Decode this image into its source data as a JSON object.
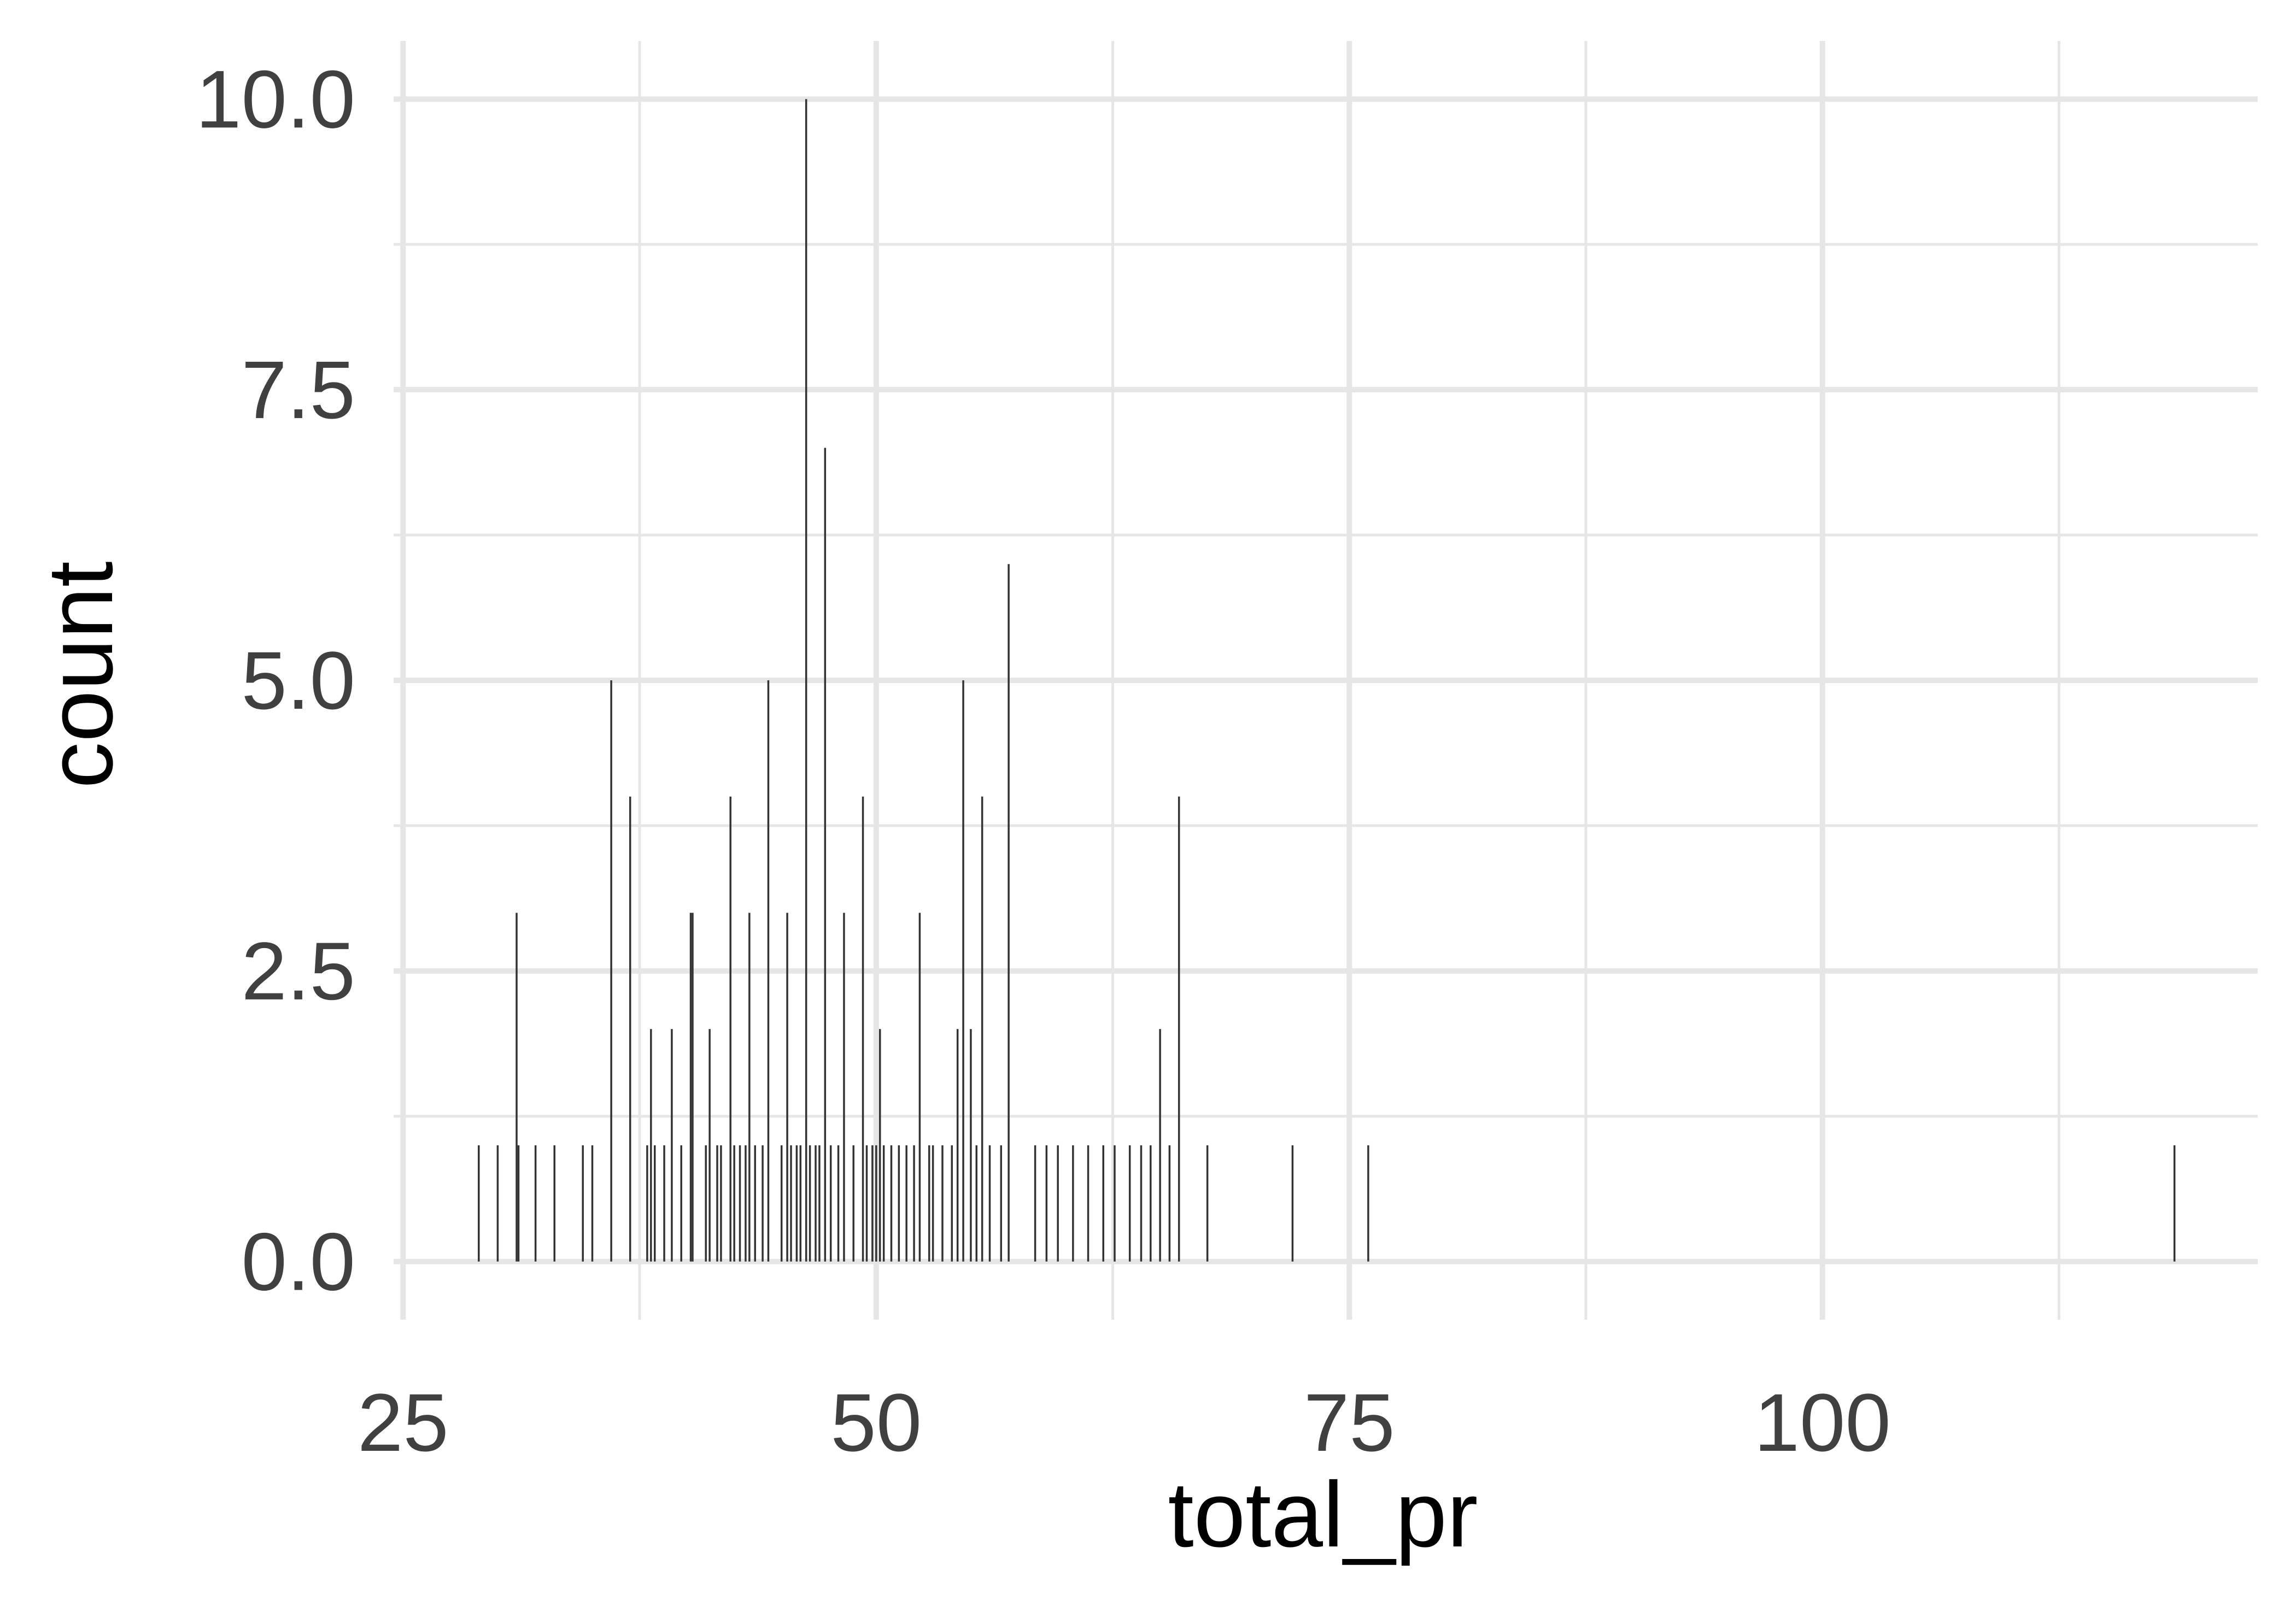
{
  "chart_data": {
    "type": "bar",
    "title": "",
    "xlabel": "total_pr",
    "ylabel": "count",
    "xlim": [
      24.5,
      123
    ],
    "ylim": [
      -0.5,
      10.5
    ],
    "x_ticks": [
      25,
      50,
      75,
      100
    ],
    "x_tick_labels": [
      "25",
      "50",
      "75",
      "100"
    ],
    "y_ticks": [
      0,
      2.5,
      5,
      7.5,
      10
    ],
    "y_tick_labels": [
      "0.0",
      "2.5",
      "5.0",
      "7.5",
      "10.0"
    ],
    "grid": true,
    "legend": "none",
    "colors": {
      "bar": "#333333",
      "grid": "#e6e6e6",
      "tick_text": "#404040",
      "title_text": "#000000",
      "background": "#ffffff"
    },
    "bars": [
      {
        "x": 29,
        "count": 1
      },
      {
        "x": 30,
        "count": 1
      },
      {
        "x": 31,
        "count": 3
      },
      {
        "x": 31.1,
        "count": 1
      },
      {
        "x": 32,
        "count": 1
      },
      {
        "x": 33,
        "count": 1
      },
      {
        "x": 34.5,
        "count": 1
      },
      {
        "x": 35,
        "count": 1
      },
      {
        "x": 36,
        "count": 5
      },
      {
        "x": 37,
        "count": 4
      },
      {
        "x": 37.9,
        "count": 1
      },
      {
        "x": 38.1,
        "count": 2
      },
      {
        "x": 38.3,
        "count": 1
      },
      {
        "x": 38.8,
        "count": 1
      },
      {
        "x": 39.2,
        "count": 2
      },
      {
        "x": 39.7,
        "count": 1
      },
      {
        "x": 40.2,
        "count": 3
      },
      {
        "x": 40.3,
        "count": 3
      },
      {
        "x": 41,
        "count": 1
      },
      {
        "x": 41.2,
        "count": 2
      },
      {
        "x": 41.6,
        "count": 1
      },
      {
        "x": 41.8,
        "count": 1
      },
      {
        "x": 42.3,
        "count": 4
      },
      {
        "x": 42.5,
        "count": 1
      },
      {
        "x": 42.8,
        "count": 1
      },
      {
        "x": 43.1,
        "count": 1
      },
      {
        "x": 43.3,
        "count": 3
      },
      {
        "x": 43.6,
        "count": 1
      },
      {
        "x": 44,
        "count": 1
      },
      {
        "x": 44.3,
        "count": 5
      },
      {
        "x": 45,
        "count": 1
      },
      {
        "x": 45.3,
        "count": 3
      },
      {
        "x": 45.5,
        "count": 1
      },
      {
        "x": 45.8,
        "count": 1
      },
      {
        "x": 46,
        "count": 1
      },
      {
        "x": 46.3,
        "count": 10
      },
      {
        "x": 46.5,
        "count": 1
      },
      {
        "x": 46.8,
        "count": 1
      },
      {
        "x": 47,
        "count": 1
      },
      {
        "x": 47.3,
        "count": 7
      },
      {
        "x": 47.6,
        "count": 1
      },
      {
        "x": 48,
        "count": 1
      },
      {
        "x": 48.3,
        "count": 3
      },
      {
        "x": 48.8,
        "count": 1
      },
      {
        "x": 49.3,
        "count": 4
      },
      {
        "x": 49.5,
        "count": 1
      },
      {
        "x": 49.8,
        "count": 1
      },
      {
        "x": 50,
        "count": 1
      },
      {
        "x": 50.2,
        "count": 2
      },
      {
        "x": 50.4,
        "count": 1
      },
      {
        "x": 50.8,
        "count": 1
      },
      {
        "x": 51.2,
        "count": 1
      },
      {
        "x": 51.6,
        "count": 1
      },
      {
        "x": 52,
        "count": 1
      },
      {
        "x": 52.3,
        "count": 3
      },
      {
        "x": 52.8,
        "count": 1
      },
      {
        "x": 53,
        "count": 1
      },
      {
        "x": 53.5,
        "count": 1
      },
      {
        "x": 54,
        "count": 1
      },
      {
        "x": 54.3,
        "count": 2
      },
      {
        "x": 54.6,
        "count": 5
      },
      {
        "x": 55,
        "count": 2
      },
      {
        "x": 55.3,
        "count": 1
      },
      {
        "x": 55.6,
        "count": 4
      },
      {
        "x": 56,
        "count": 1
      },
      {
        "x": 56.6,
        "count": 1
      },
      {
        "x": 57,
        "count": 6
      },
      {
        "x": 58.4,
        "count": 1
      },
      {
        "x": 59,
        "count": 1
      },
      {
        "x": 59.6,
        "count": 1
      },
      {
        "x": 60.4,
        "count": 1
      },
      {
        "x": 61.2,
        "count": 1
      },
      {
        "x": 62,
        "count": 1
      },
      {
        "x": 62.6,
        "count": 1
      },
      {
        "x": 63.4,
        "count": 1
      },
      {
        "x": 64,
        "count": 1
      },
      {
        "x": 64.5,
        "count": 1
      },
      {
        "x": 65,
        "count": 2
      },
      {
        "x": 65.5,
        "count": 1
      },
      {
        "x": 66,
        "count": 4
      },
      {
        "x": 67.5,
        "count": 1
      },
      {
        "x": 72,
        "count": 1
      },
      {
        "x": 76,
        "count": 1
      },
      {
        "x": 118.6,
        "count": 1
      }
    ]
  }
}
